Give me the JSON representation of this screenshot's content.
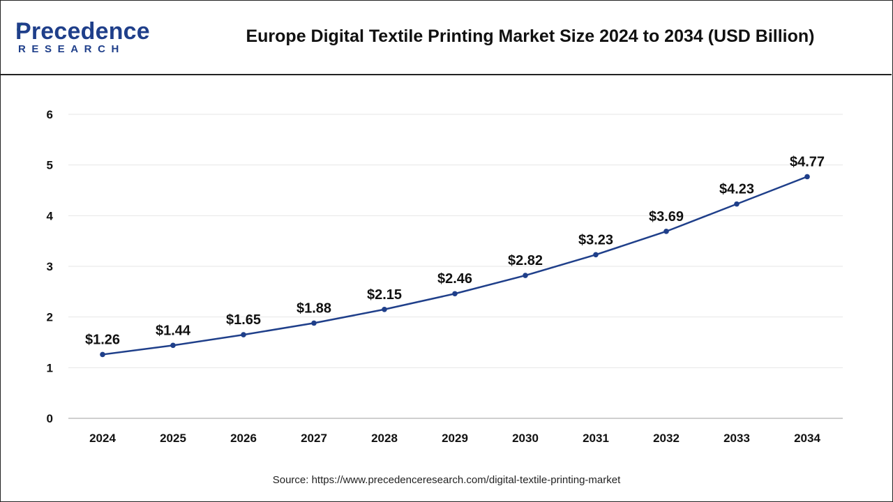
{
  "brand": {
    "name": "Precedence",
    "sub": "RESEARCH",
    "color": "#1f3f8a",
    "leaf_color": "#2bb673",
    "icon": "leaf-icon"
  },
  "header": {
    "title": "Europe Digital Textile Printing Market Size 2024 to 2034 (USD Billion)"
  },
  "footer": {
    "source": "Source: https://www.precedenceresearch.com/digital-textile-printing-market"
  },
  "chart_data": {
    "type": "line",
    "title": "Europe Digital Textile Printing Market Size 2024 to 2034 (USD Billion)",
    "xlabel": "",
    "ylabel": "",
    "x": [
      "2024",
      "2025",
      "2026",
      "2027",
      "2028",
      "2029",
      "2030",
      "2031",
      "2032",
      "2033",
      "2034"
    ],
    "series": [
      {
        "values": [
          1.26,
          1.44,
          1.65,
          1.88,
          2.15,
          2.46,
          2.82,
          3.23,
          3.69,
          4.23,
          4.77
        ],
        "labels": [
          "$1.26",
          "$1.44",
          "$1.65",
          "$1.88",
          "$2.15",
          "$2.46",
          "$2.82",
          "$3.23",
          "$3.69",
          "$4.23",
          "$4.77"
        ],
        "color": "#1f3f8a"
      }
    ],
    "ylim": [
      0,
      6
    ],
    "yticks": [
      "0",
      "1",
      "2",
      "3",
      "4",
      "5",
      "6"
    ],
    "grid": true,
    "legend": "none"
  }
}
